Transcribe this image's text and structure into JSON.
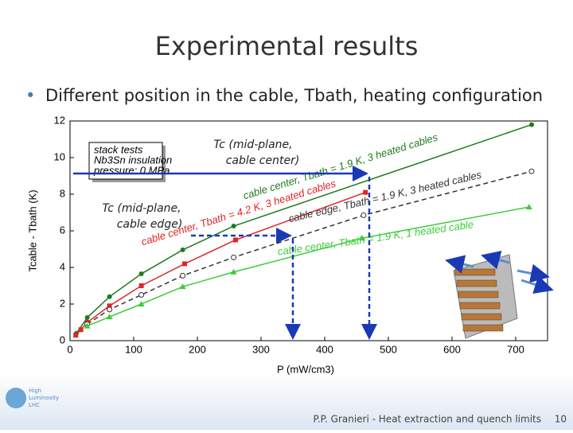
{
  "slide": {
    "title": "Experimental results",
    "bullet": "Different position in the cable, Tbath, heating configuration",
    "footer": "P.P. Granieri - Heat extraction and quench limits",
    "page": "10",
    "logo": [
      "High",
      "Luminosity",
      "LHC"
    ],
    "annotations": [
      [
        "Tc (mid-plane,",
        "cable center)"
      ],
      [
        "Tc (mid-plane,",
        "cable edge)"
      ]
    ]
  },
  "chart_data": {
    "type": "line",
    "x_label": "P (mW/cm3)",
    "y_label": "Tcable - Tbath (K)",
    "xlim": [
      0,
      750
    ],
    "ylim": [
      0,
      12
    ],
    "xticks": [
      0,
      100,
      200,
      300,
      400,
      500,
      600,
      700
    ],
    "yticks": [
      0,
      2,
      4,
      6,
      8,
      10,
      12
    ],
    "legend": [
      "stack tests",
      "Nb3Sn insulation",
      "pressure: 0 MPa"
    ],
    "series": [
      {
        "name": "cable center, Tbath = 1.9 K, 3 heated cables",
        "color": "#1f7a1f",
        "marker": "circle",
        "dashed": false,
        "x": [
          10,
          27,
          62,
          112,
          177,
          257,
          725
        ],
        "values": [
          0.4,
          1.26,
          2.4,
          3.65,
          4.96,
          6.26,
          11.8
        ]
      },
      {
        "name": "cable center, Tbath = 4.2 K, 3 heated cables",
        "color": "#e02525",
        "marker": "square",
        "dashed": false,
        "x": [
          9,
          17,
          27,
          62,
          112,
          180,
          260,
          464
        ],
        "values": [
          0.3,
          0.6,
          1.0,
          1.9,
          3.0,
          4.2,
          5.5,
          8.1
        ]
      },
      {
        "name": "cable edge, Tbath = 1.9 K, 3 heated cables",
        "color": "#333333",
        "marker": "open-circle",
        "dashed": true,
        "x": [
          27,
          62,
          112,
          177,
          257,
          461,
          725
        ],
        "values": [
          0.9,
          1.7,
          2.5,
          3.55,
          4.55,
          6.85,
          9.25
        ]
      },
      {
        "name": "cable center, Tbath = 1.9 K, 1 heated cable",
        "color": "#3ccc3c",
        "marker": "triangle",
        "dashed": false,
        "x": [
          27,
          62,
          112,
          177,
          257,
          459,
          721
        ],
        "values": [
          0.8,
          1.3,
          2.0,
          2.95,
          3.75,
          5.6,
          7.3
        ]
      }
    ]
  }
}
